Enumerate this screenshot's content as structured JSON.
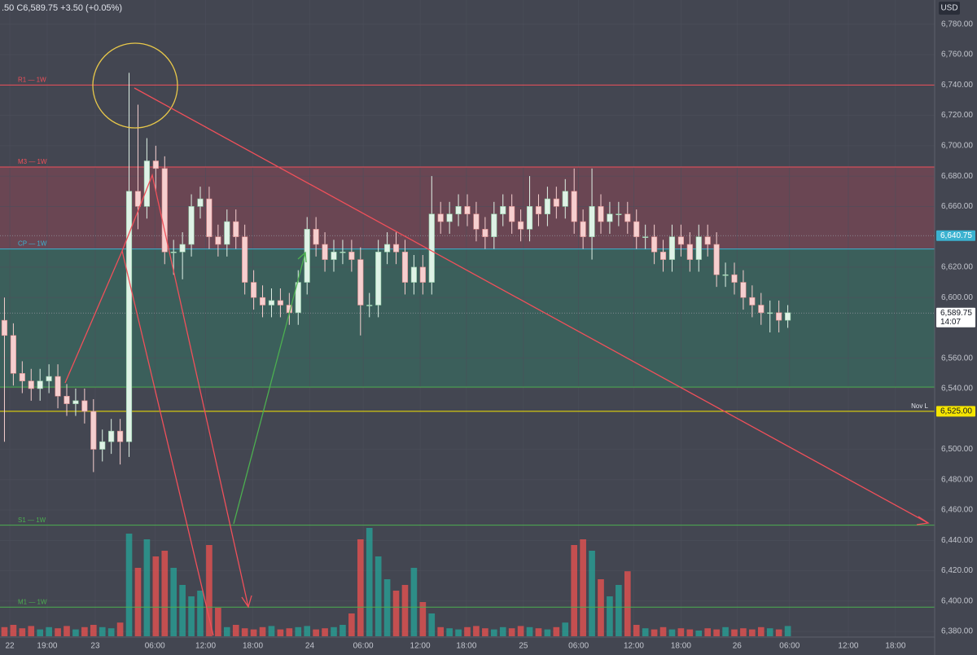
{
  "chart_data": {
    "type": "candlestick",
    "header": ".50  C6,589.75  +3.50 (+0.05%)",
    "currency": "USD",
    "up_color": "#dff2e6",
    "down_color": "#f6cfcf",
    "volume_up_color": "#26a69a",
    "volume_down_color": "#ef5350",
    "open": [
      6585,
      6575,
      6550,
      6545,
      6540,
      6545,
      6548,
      6535,
      6530,
      6532,
      6525,
      6500,
      6505,
      6512,
      6505,
      6670,
      6660,
      6690,
      6685,
      6630,
      6630,
      6635,
      6660,
      6665,
      6640,
      6635,
      6650,
      6640,
      6610,
      6600,
      6595,
      6598,
      6595,
      6590,
      6610,
      6645,
      6635,
      6625,
      6630,
      6630,
      6625,
      6595,
      6595,
      6630,
      6635,
      6630,
      6610,
      6620,
      6610,
      6655,
      6650,
      6655,
      6660,
      6655,
      6645,
      6640,
      6655,
      6660,
      6650,
      6645,
      6660,
      6655,
      6665,
      6660,
      6670,
      6650,
      6640,
      6660,
      6650,
      6655,
      6655,
      6650,
      6640,
      6640,
      6630,
      6625,
      6640,
      6635,
      6625,
      6640,
      6635,
      6615,
      6615,
      6610,
      6600,
      6595,
      6590,
      6590,
      6585
    ],
    "high": [
      6600,
      6583,
      6558,
      6553,
      6553,
      6556,
      6556,
      6543,
      6540,
      6540,
      6533,
      6513,
      6520,
      6520,
      6748,
      6727,
      6705,
      6700,
      6693,
      6638,
      6643,
      6668,
      6673,
      6673,
      6648,
      6658,
      6658,
      6648,
      6618,
      6608,
      6606,
      6606,
      6603,
      6618,
      6653,
      6653,
      6643,
      6638,
      6638,
      6638,
      6633,
      6603,
      6638,
      6643,
      6643,
      6638,
      6628,
      6628,
      6680,
      6663,
      6663,
      6668,
      6668,
      6663,
      6653,
      6663,
      6668,
      6668,
      6658,
      6680,
      6668,
      6673,
      6673,
      6678,
      6685,
      6658,
      6685,
      6668,
      6663,
      6663,
      6663,
      6658,
      6648,
      6648,
      6638,
      6648,
      6648,
      6643,
      6648,
      6648,
      6643,
      6623,
      6623,
      6618,
      6608,
      6603,
      6598,
      6598,
      6595
    ],
    "low": [
      6505,
      6542,
      6537,
      6532,
      6532,
      6537,
      6527,
      6522,
      6522,
      6517,
      6485,
      6492,
      6497,
      6490,
      6495,
      6645,
      6652,
      6670,
      6622,
      6615,
      6612,
      6627,
      6652,
      6632,
      6627,
      6627,
      6632,
      6602,
      6592,
      6587,
      6587,
      6587,
      6582,
      6582,
      6602,
      6627,
      6617,
      6617,
      6622,
      6617,
      6575,
      6587,
      6587,
      6622,
      6622,
      6602,
      6602,
      6602,
      6602,
      6642,
      6642,
      6647,
      6647,
      6637,
      6632,
      6632,
      6647,
      6642,
      6637,
      6637,
      6647,
      6647,
      6652,
      6652,
      6642,
      6632,
      6625,
      6642,
      6642,
      6647,
      6642,
      6632,
      6632,
      6622,
      6617,
      6617,
      6627,
      6617,
      6617,
      6627,
      6607,
      6607,
      6602,
      6592,
      6587,
      6582,
      6577,
      6577,
      6580
    ],
    "close": [
      6575,
      6550,
      6545,
      6540,
      6545,
      6548,
      6535,
      6530,
      6532,
      6525,
      6500,
      6505,
      6512,
      6505,
      6670,
      6660,
      6690,
      6685,
      6630,
      6630,
      6635,
      6660,
      6665,
      6640,
      6635,
      6650,
      6640,
      6610,
      6600,
      6595,
      6598,
      6595,
      6590,
      6610,
      6645,
      6635,
      6625,
      6630,
      6630,
      6625,
      6595,
      6595,
      6630,
      6635,
      6630,
      6610,
      6620,
      6610,
      6655,
      6650,
      6655,
      6660,
      6655,
      6645,
      6640,
      6655,
      6660,
      6650,
      6645,
      6660,
      6655,
      6665,
      6660,
      6670,
      6650,
      6640,
      6660,
      6650,
      6655,
      6655,
      6650,
      6640,
      6640,
      6630,
      6625,
      6640,
      6635,
      6625,
      6640,
      6635,
      6615,
      6615,
      6610,
      6600,
      6595,
      6590,
      6590,
      6585,
      6590
    ],
    "volume": [
      8,
      10,
      7,
      9,
      6,
      8,
      7,
      9,
      6,
      8,
      10,
      8,
      7,
      12,
      90,
      60,
      85,
      70,
      75,
      60,
      45,
      35,
      40,
      80,
      25,
      8,
      10,
      7,
      6,
      8,
      9,
      6,
      7,
      8,
      9,
      6,
      7,
      8,
      10,
      20,
      85,
      95,
      70,
      50,
      40,
      45,
      60,
      30,
      20,
      8,
      7,
      6,
      8,
      9,
      7,
      6,
      8,
      7,
      9,
      8,
      7,
      6,
      8,
      12,
      80,
      85,
      75,
      50,
      35,
      45,
      57,
      10,
      7,
      6,
      8,
      6,
      7,
      6,
      5,
      7,
      6,
      8,
      6,
      7,
      6,
      8,
      7,
      6,
      9
    ],
    "volume_lim": [
      0,
      100
    ],
    "xlim": [
      -0.5,
      104.5
    ],
    "xticks": [
      {
        "value": 0.6,
        "label": "22"
      },
      {
        "value": 4.8,
        "label": "19:00"
      },
      {
        "value": 10.2,
        "label": "23"
      },
      {
        "value": 16.9,
        "label": "06:00"
      },
      {
        "value": 22.6,
        "label": "12:00"
      },
      {
        "value": 27.9,
        "label": "18:00"
      },
      {
        "value": 34.3,
        "label": "24"
      },
      {
        "value": 40.3,
        "label": "06:00"
      },
      {
        "value": 46.7,
        "label": "12:00"
      },
      {
        "value": 51.9,
        "label": "18:00"
      },
      {
        "value": 58.3,
        "label": "25"
      },
      {
        "value": 64.5,
        "label": "06:00"
      },
      {
        "value": 70.7,
        "label": "12:00"
      },
      {
        "value": 76.0,
        "label": "18:00"
      },
      {
        "value": 82.3,
        "label": "26"
      },
      {
        "value": 88.2,
        "label": "06:00"
      },
      {
        "value": 94.8,
        "label": "12:00"
      },
      {
        "value": 100.1,
        "label": "18:00"
      }
    ],
    "ylim": [
      6372,
      6796
    ],
    "yticks": [
      {
        "value": 6380,
        "label": "6,380.00"
      },
      {
        "value": 6400,
        "label": "6,400.00"
      },
      {
        "value": 6420,
        "label": "6,420.00"
      },
      {
        "value": 6440,
        "label": "6,440.00"
      },
      {
        "value": 6460,
        "label": "6,460.00"
      },
      {
        "value": 6480,
        "label": "6,480.00"
      },
      {
        "value": 6500,
        "label": "6,500.00"
      },
      {
        "value": 6540,
        "label": "6,540.00"
      },
      {
        "value": 6560,
        "label": "6,560.00"
      },
      {
        "value": 6600,
        "label": "6,600.00"
      },
      {
        "value": 6620,
        "label": "6,620.00"
      },
      {
        "value": 6660,
        "label": "6,660.00"
      },
      {
        "value": 6680,
        "label": "6,680.00"
      },
      {
        "value": 6700,
        "label": "6,700.00"
      },
      {
        "value": 6720,
        "label": "6,720.00"
      },
      {
        "value": 6740,
        "label": "6,740.00"
      },
      {
        "value": 6760,
        "label": "6,760.00"
      },
      {
        "value": 6780,
        "label": "6,780.00"
      }
    ],
    "levels": [
      {
        "label": "R1 — 1W",
        "value": 6740,
        "color": "#f0505a"
      },
      {
        "label": "M3 — 1W",
        "value": 6686,
        "color": "#f0505a"
      },
      {
        "label": "CP — 1W",
        "value": 6632,
        "color": "#3bb2d0"
      },
      {
        "value": 6541,
        "color": "#4caf50"
      },
      {
        "label": "Nov L",
        "value": 6525,
        "color": "#f5e500"
      },
      {
        "label": "S1 — 1W",
        "value": 6450,
        "color": "#4caf50"
      },
      {
        "label": "M1 — 1W",
        "value": 6396,
        "color": "#4caf50"
      }
    ],
    "zones": [
      {
        "from": 6632,
        "to": 6686,
        "color": "#b5485a"
      },
      {
        "from": 6541,
        "to": 6632,
        "color": "#2f8f70"
      }
    ],
    "price_labels": [
      {
        "value": 6640.75,
        "label": "6,640.75",
        "bg": "#3bb2d0",
        "fg": "#ffffff"
      },
      {
        "value": 6589.75,
        "label": "6,589.75",
        "time": "14:07",
        "bg": "#ffffff",
        "fg": "#131722"
      },
      {
        "value": 6525,
        "label": "6,525.00",
        "bg": "#f5e500",
        "fg": "#131722"
      }
    ]
  }
}
